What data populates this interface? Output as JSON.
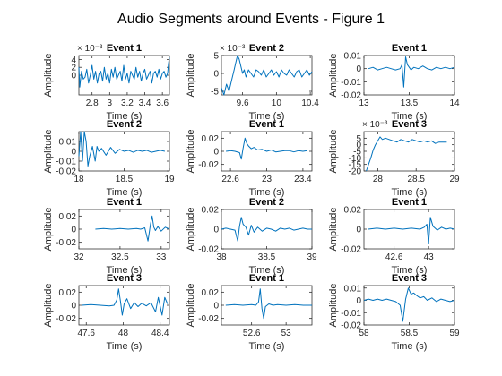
{
  "chart_data": {
    "title": "Audio Segments around Events - Figure 1",
    "series_color": "#0072bd",
    "panels": [
      {
        "type": "line",
        "title": "Event 1",
        "xlabel": "Time (s)",
        "ylabel": "Amplitude",
        "xlim": [
          2.65,
          3.68
        ],
        "ylim": [
          -5,
          5
        ],
        "xticks": [
          2.8,
          3,
          3.2,
          3.4,
          3.6
        ],
        "xtick_labels": [
          "2.8",
          "3",
          "3.2",
          "3.4",
          "3.6"
        ],
        "yticks": [
          0,
          2,
          4
        ],
        "ytick_labels": [
          "0",
          "2",
          "4"
        ],
        "exponent": "× 10⁻³",
        "x": [
          2.65,
          2.66,
          2.68,
          2.7,
          2.72,
          2.74,
          2.76,
          2.78,
          2.8,
          2.82,
          2.84,
          2.86,
          2.88,
          2.9,
          2.92,
          2.94,
          2.96,
          2.98,
          3.0,
          3.02,
          3.04,
          3.06,
          3.08,
          3.1,
          3.12,
          3.14,
          3.16,
          3.18,
          3.2,
          3.22,
          3.24,
          3.26,
          3.28,
          3.3,
          3.32,
          3.34,
          3.36,
          3.38,
          3.4,
          3.42,
          3.44,
          3.46,
          3.48,
          3.5,
          3.52,
          3.54,
          3.56,
          3.58,
          3.6,
          3.62,
          3.64,
          3.66,
          3.67,
          3.68
        ],
        "y": [
          2,
          -3,
          1,
          -1,
          -0.5,
          1.5,
          -2,
          0,
          2.5,
          -1,
          1,
          -2,
          0.5,
          1,
          -1.5,
          2,
          -1,
          0.5,
          -2,
          1.5,
          -0.5,
          2,
          -1,
          0,
          1,
          -1.5,
          2.5,
          -1,
          0.5,
          -2,
          1,
          0,
          -1,
          2,
          -0.5,
          1,
          -1.5,
          0.5,
          1.5,
          -1,
          0,
          1,
          -2,
          0.5,
          1,
          -0.5,
          1.5,
          -1,
          0.5,
          1,
          -0.5,
          0.5,
          3,
          4.5
        ]
      },
      {
        "type": "line",
        "title": "Event 2",
        "xlabel": "Time (s)",
        "ylabel": "Amplitude",
        "xlim": [
          9.35,
          10.42
        ],
        "ylim": [
          -6,
          5
        ],
        "xticks": [
          9.6,
          10,
          10.4
        ],
        "xtick_labels": [
          "9.6",
          "10",
          "10.4"
        ],
        "yticks": [
          -5,
          0,
          5
        ],
        "ytick_labels": [
          "-5",
          "0",
          "5"
        ],
        "exponent": "× 10⁻³",
        "x": [
          9.35,
          9.38,
          9.41,
          9.44,
          9.47,
          9.5,
          9.52,
          9.54,
          9.56,
          9.58,
          9.6,
          9.62,
          9.64,
          9.67,
          9.7,
          9.73,
          9.76,
          9.79,
          9.82,
          9.85,
          9.88,
          9.91,
          9.94,
          9.97,
          10.0,
          10.03,
          10.06,
          10.09,
          10.12,
          10.15,
          10.18,
          10.21,
          10.24,
          10.27,
          10.3,
          10.33,
          10.36,
          10.39,
          10.42
        ],
        "y": [
          -4,
          -6,
          -3,
          -5,
          -2,
          1,
          3,
          5,
          4,
          2,
          0,
          1,
          -1,
          1,
          0,
          -1,
          1,
          0.5,
          -0.5,
          1,
          -1,
          0,
          1,
          -0.5,
          0.5,
          -1,
          1,
          0,
          -0.5,
          1,
          0,
          -1,
          0.5,
          1,
          -1,
          0,
          1,
          -0.5,
          0.5
        ]
      },
      {
        "type": "line",
        "title": "Event 1",
        "xlabel": "Time (s)",
        "ylabel": "Amplitude",
        "xlim": [
          13,
          14
        ],
        "ylim": [
          -0.02,
          0.01
        ],
        "xticks": [
          13,
          13.5,
          14
        ],
        "xtick_labels": [
          "13",
          "13.5",
          "14"
        ],
        "yticks": [
          -0.02,
          -0.01,
          0,
          0.01
        ],
        "ytick_labels": [
          "-0.02",
          "-0.01",
          "0",
          "0.01"
        ],
        "x": [
          13.05,
          13.1,
          13.15,
          13.2,
          13.25,
          13.3,
          13.35,
          13.4,
          13.42,
          13.44,
          13.46,
          13.48,
          13.5,
          13.52,
          13.55,
          13.6,
          13.65,
          13.7,
          13.75,
          13.8,
          13.85,
          13.9,
          13.95,
          14.0
        ],
        "y": [
          0,
          0.001,
          -0.001,
          0,
          0.001,
          0,
          -0.001,
          0,
          0.003,
          -0.014,
          0.009,
          0.003,
          0.001,
          -0.001,
          0.001,
          0,
          0.002,
          0,
          -0.001,
          0.001,
          0,
          0.001,
          0,
          0.001
        ]
      },
      {
        "type": "line",
        "title": "Event 2",
        "xlabel": "Time (s)",
        "ylabel": "Amplitude",
        "xlim": [
          18,
          19
        ],
        "ylim": [
          -0.02,
          0.02
        ],
        "xticks": [
          18,
          18.5,
          19
        ],
        "xtick_labels": [
          "18",
          "18.5",
          "19"
        ],
        "yticks": [
          -0.02,
          -0.01,
          0,
          0.01
        ],
        "ytick_labels": [
          "-0.02",
          "-0.01",
          "0",
          "0.01"
        ],
        "x": [
          18.0,
          18.02,
          18.04,
          18.06,
          18.08,
          18.1,
          18.12,
          18.15,
          18.18,
          18.2,
          18.22,
          18.25,
          18.3,
          18.35,
          18.4,
          18.45,
          18.5,
          18.55,
          18.6,
          18.65,
          18.7,
          18.75,
          18.8,
          18.85,
          18.9,
          18.95
        ],
        "y": [
          -0.005,
          0.02,
          -0.01,
          0.02,
          0.01,
          -0.015,
          -0.005,
          0.005,
          -0.01,
          0.005,
          0,
          0.003,
          -0.004,
          0.004,
          -0.002,
          0.002,
          0,
          0.001,
          -0.001,
          0.001,
          0,
          0.001,
          -0.001,
          0,
          0.001,
          0
        ]
      },
      {
        "type": "line",
        "title": "Event 1",
        "xlabel": "Time (s)",
        "ylabel": "Amplitude",
        "xlim": [
          22.5,
          23.5
        ],
        "ylim": [
          -0.03,
          0.03
        ],
        "xticks": [
          22.6,
          23,
          23.4
        ],
        "xtick_labels": [
          "22.6",
          "23",
          "23.4"
        ],
        "yticks": [
          -0.02,
          0,
          0.02
        ],
        "ytick_labels": [
          "-0.02",
          "0",
          "0.02"
        ],
        "x": [
          22.55,
          22.6,
          22.65,
          22.7,
          22.72,
          22.74,
          22.76,
          22.78,
          22.8,
          22.83,
          22.86,
          22.9,
          22.95,
          23.0,
          23.05,
          23.1,
          23.15,
          23.2,
          23.25,
          23.3,
          23.35,
          23.4,
          23.45
        ],
        "y": [
          0,
          0.001,
          0,
          -0.002,
          -0.012,
          0.005,
          0.02,
          0.012,
          0.008,
          0.004,
          0.006,
          0.002,
          0.003,
          0,
          0.002,
          -0.001,
          0,
          0.001,
          0.001,
          -0.001,
          0.001,
          0,
          0.001
        ]
      },
      {
        "type": "line",
        "title": "Event 3",
        "xlabel": "Time (s)",
        "ylabel": "Amplitude",
        "xlim": [
          27.82,
          29
        ],
        "ylim": [
          -20,
          10
        ],
        "xticks": [
          28,
          28.5,
          29
        ],
        "xtick_labels": [
          "28",
          "28.5",
          "29"
        ],
        "yticks": [
          -20,
          -15,
          -10,
          -5,
          0,
          5
        ],
        "ytick_labels": [
          "-20",
          "-15",
          "-10",
          "-5",
          "0",
          "5"
        ],
        "exponent": "× 10⁻³",
        "x": [
          27.85,
          27.88,
          27.91,
          27.94,
          27.97,
          28.0,
          28.03,
          28.06,
          28.1,
          28.15,
          28.2,
          28.25,
          28.3,
          28.35,
          28.4,
          28.45,
          28.5,
          28.55,
          28.6,
          28.65,
          28.7,
          28.75,
          28.8,
          28.85,
          28.9
        ],
        "y": [
          -20,
          -15,
          -10,
          -4,
          0,
          3,
          6,
          4,
          5,
          4,
          3,
          2,
          4,
          3,
          2,
          4,
          3,
          2,
          3,
          2,
          3,
          1,
          2,
          2,
          2
        ]
      },
      {
        "type": "line",
        "title": "Event 1",
        "xlabel": "Time (s)",
        "ylabel": "Amplitude",
        "xlim": [
          32,
          33.1
        ],
        "ylim": [
          -0.03,
          0.03
        ],
        "xticks": [
          32,
          32.5,
          33
        ],
        "xtick_labels": [
          "32",
          "32.5",
          "33"
        ],
        "yticks": [
          -0.02,
          0,
          0.02
        ],
        "ytick_labels": [
          "-0.02",
          "0",
          "0.02"
        ],
        "x": [
          32.2,
          32.3,
          32.4,
          32.5,
          32.6,
          32.7,
          32.75,
          32.8,
          32.84,
          32.87,
          32.89,
          32.91,
          32.93,
          32.96,
          33.0,
          33.05,
          33.1
        ],
        "y": [
          0,
          0.001,
          0,
          0.001,
          0,
          0.001,
          0,
          0.002,
          -0.018,
          0.008,
          0.02,
          0.003,
          -0.002,
          0.004,
          -0.003,
          0.003,
          0
        ]
      },
      {
        "type": "line",
        "title": "Event 2",
        "xlabel": "Time (s)",
        "ylabel": "Amplitude",
        "xlim": [
          38,
          39
        ],
        "ylim": [
          -0.02,
          0.02
        ],
        "xticks": [
          38,
          38.5,
          39
        ],
        "xtick_labels": [
          "38",
          "38.5",
          "39"
        ],
        "yticks": [
          -0.02,
          0,
          0.02
        ],
        "ytick_labels": [
          "-0.02",
          "0",
          "0.02"
        ],
        "x": [
          38.0,
          38.05,
          38.1,
          38.15,
          38.18,
          38.2,
          38.22,
          38.24,
          38.27,
          38.3,
          38.33,
          38.36,
          38.4,
          38.45,
          38.5,
          38.55,
          38.6,
          38.65,
          38.7,
          38.75,
          38.8,
          38.85,
          38.9,
          38.95,
          39.0
        ],
        "y": [
          0,
          0.001,
          0,
          -0.001,
          -0.012,
          0.003,
          0.012,
          0.005,
          0.002,
          -0.006,
          0.004,
          -0.003,
          0.002,
          -0.002,
          0.001,
          0,
          -0.002,
          0.001,
          0,
          0.001,
          -0.001,
          0,
          0.001,
          0,
          0
        ]
      },
      {
        "type": "line",
        "title": "Event 1",
        "xlabel": "Time (s)",
        "ylabel": "Amplitude",
        "xlim": [
          42.25,
          43.3
        ],
        "ylim": [
          -0.02,
          0.02
        ],
        "xticks": [
          42.6,
          43
        ],
        "xtick_labels": [
          "42.6",
          "43"
        ],
        "yticks": [
          -0.02,
          0,
          0.02
        ],
        "ytick_labels": [
          "-0.02",
          "0",
          "0.02"
        ],
        "x": [
          42.3,
          42.4,
          42.5,
          42.6,
          42.7,
          42.8,
          42.9,
          42.95,
          42.98,
          43.0,
          43.02,
          43.05,
          43.1,
          43.15,
          43.2,
          43.25,
          43.3
        ],
        "y": [
          0,
          0.001,
          0,
          0.001,
          0,
          0.001,
          0,
          0.002,
          0.005,
          -0.015,
          0.012,
          0.003,
          -0.001,
          0.002,
          0,
          0.001,
          0
        ]
      },
      {
        "type": "line",
        "title": "Event 3",
        "xlabel": "Time (s)",
        "ylabel": "Amplitude",
        "xlim": [
          47.52,
          48.5
        ],
        "ylim": [
          -0.03,
          0.03
        ],
        "xticks": [
          47.6,
          48,
          48.4
        ],
        "xtick_labels": [
          "47.6",
          "48",
          "48.4"
        ],
        "yticks": [
          -0.02,
          0,
          0.02
        ],
        "ytick_labels": [
          "-0.02",
          "0",
          "0.02"
        ],
        "x": [
          47.55,
          47.65,
          47.75,
          47.85,
          47.9,
          47.93,
          47.95,
          47.97,
          47.99,
          48.01,
          48.04,
          48.08,
          48.12,
          48.16,
          48.2,
          48.25,
          48.3,
          48.35,
          48.38,
          48.42,
          48.45,
          48.48
        ],
        "y": [
          0,
          0.001,
          0,
          -0.001,
          0,
          0.008,
          0.025,
          0.006,
          -0.015,
          0.002,
          0.01,
          -0.005,
          0.004,
          -0.002,
          0.003,
          -0.001,
          0.004,
          -0.01,
          0.012,
          -0.015,
          0.012,
          0.002
        ]
      },
      {
        "type": "line",
        "title": "Event 1",
        "xlabel": "Time (s)",
        "ylabel": "Amplitude",
        "xlim": [
          52.25,
          53.3
        ],
        "ylim": [
          -0.03,
          0.03
        ],
        "xticks": [
          52.6,
          53
        ],
        "xtick_labels": [
          "52.6",
          "53"
        ],
        "yticks": [
          -0.02,
          0,
          0.02
        ],
        "ytick_labels": [
          "-0.02",
          "0",
          "0.02"
        ],
        "x": [
          52.3,
          52.4,
          52.5,
          52.6,
          52.65,
          52.68,
          52.7,
          52.72,
          52.74,
          52.76,
          52.8,
          52.85,
          52.9,
          53.0,
          53.1,
          53.2,
          53.3
        ],
        "y": [
          0,
          0.001,
          0,
          0.001,
          0,
          0.005,
          0.025,
          -0.005,
          -0.02,
          -0.002,
          0.002,
          0,
          0.001,
          0,
          0.001,
          0,
          0
        ]
      },
      {
        "type": "line",
        "title": "Event 3",
        "xlabel": "Time (s)",
        "ylabel": "Amplitude",
        "xlim": [
          58,
          59
        ],
        "ylim": [
          -0.02,
          0.012
        ],
        "xticks": [
          58,
          58.5,
          59
        ],
        "xtick_labels": [
          "58",
          "58.5",
          "59"
        ],
        "yticks": [
          -0.02,
          -0.01,
          0,
          0.01
        ],
        "ytick_labels": [
          "-0.02",
          "-0.01",
          "0",
          "0.01"
        ],
        "x": [
          58.0,
          58.05,
          58.1,
          58.15,
          58.2,
          58.25,
          58.3,
          58.35,
          58.4,
          58.43,
          58.46,
          58.49,
          58.52,
          58.55,
          58.58,
          58.62,
          58.66,
          58.7,
          58.75,
          58.8,
          58.85,
          58.9,
          58.95,
          59.0
        ],
        "y": [
          0,
          0.001,
          0,
          0.001,
          0,
          0.001,
          0,
          -0.001,
          -0.004,
          -0.017,
          0.001,
          0.01,
          0.005,
          0.006,
          0.004,
          0.002,
          0.003,
          0,
          0.002,
          -0.001,
          0.001,
          0,
          -0.001,
          0
        ]
      }
    ]
  }
}
